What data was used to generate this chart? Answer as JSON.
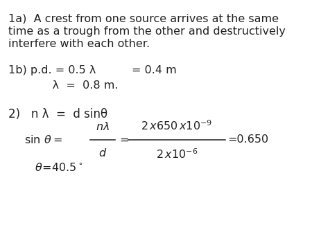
{
  "background_color": "#ffffff",
  "text_color": "#222222",
  "para1a_lines": [
    "1a)  A crest from one source arrives at the same",
    "time as a trough from the other and destructively",
    "interfere with each other."
  ],
  "line1b_part1": "1b) p.d. = 0.5 λ",
  "line1b_part2": "= 0.4 m",
  "line_lambda": "     λ  =  0.8 m.",
  "line2": "2)   n λ  =  d sinθ",
  "fontsize": 11.5,
  "fontsize_math": 11.5
}
